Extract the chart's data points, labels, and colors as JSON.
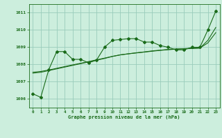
{
  "bg_color": "#cceedd",
  "grid_color": "#99ccbb",
  "line_color": "#1a6b1a",
  "xlabel": "Graphe pression niveau de la mer (hPa)",
  "ylim": [
    1005.5,
    1011.5
  ],
  "xlim": [
    -0.5,
    23.5
  ],
  "yticks": [
    1006,
    1007,
    1008,
    1009,
    1010,
    1011
  ],
  "xticks": [
    0,
    1,
    2,
    3,
    4,
    5,
    6,
    7,
    8,
    9,
    10,
    11,
    12,
    13,
    14,
    15,
    16,
    17,
    18,
    19,
    20,
    21,
    22,
    23
  ],
  "xtick_labels": [
    "0",
    "1",
    "2",
    "3",
    "4",
    "5",
    "6",
    "7",
    "8",
    "9",
    "10",
    "11",
    "12",
    "13",
    "14",
    "15",
    "16",
    "17",
    "18",
    "19",
    "20",
    "21",
    "22",
    "23"
  ],
  "series1_x": [
    0,
    1,
    2,
    3,
    4,
    5,
    6,
    7,
    8,
    9,
    10,
    11,
    12,
    13,
    14,
    15,
    16,
    17,
    18,
    19,
    20,
    21,
    22,
    23
  ],
  "series1_y": [
    1006.3,
    1006.1,
    1007.7,
    1008.75,
    1008.75,
    1008.3,
    1008.3,
    1008.1,
    1008.25,
    1009.0,
    1009.4,
    1009.45,
    1009.5,
    1009.5,
    1009.3,
    1009.3,
    1009.1,
    1009.0,
    1008.85,
    1008.85,
    1009.0,
    1009.0,
    1010.0,
    1011.1
  ],
  "series2_x": [
    0,
    1,
    2,
    3,
    4,
    5,
    6,
    7,
    8,
    9,
    10,
    11,
    12,
    13,
    14,
    15,
    16,
    17,
    18,
    19,
    20,
    21,
    22,
    23
  ],
  "series2_y": [
    1007.5,
    1007.55,
    1007.65,
    1007.75,
    1007.85,
    1007.95,
    1008.05,
    1008.15,
    1008.25,
    1008.35,
    1008.47,
    1008.56,
    1008.62,
    1008.67,
    1008.72,
    1008.77,
    1008.82,
    1008.86,
    1008.89,
    1008.91,
    1008.93,
    1008.95,
    1009.4,
    1010.15
  ],
  "series3_x": [
    0,
    1,
    2,
    3,
    4,
    5,
    6,
    7,
    8,
    9,
    10,
    11,
    12,
    13,
    14,
    15,
    16,
    17,
    18,
    19,
    20,
    21,
    22,
    23
  ],
  "series3_y": [
    1007.55,
    1007.6,
    1007.68,
    1007.78,
    1007.88,
    1007.98,
    1008.07,
    1008.17,
    1008.27,
    1008.37,
    1008.47,
    1008.56,
    1008.62,
    1008.68,
    1008.73,
    1008.79,
    1008.83,
    1008.87,
    1008.9,
    1008.92,
    1008.94,
    1008.96,
    1009.25,
    1009.85
  ]
}
